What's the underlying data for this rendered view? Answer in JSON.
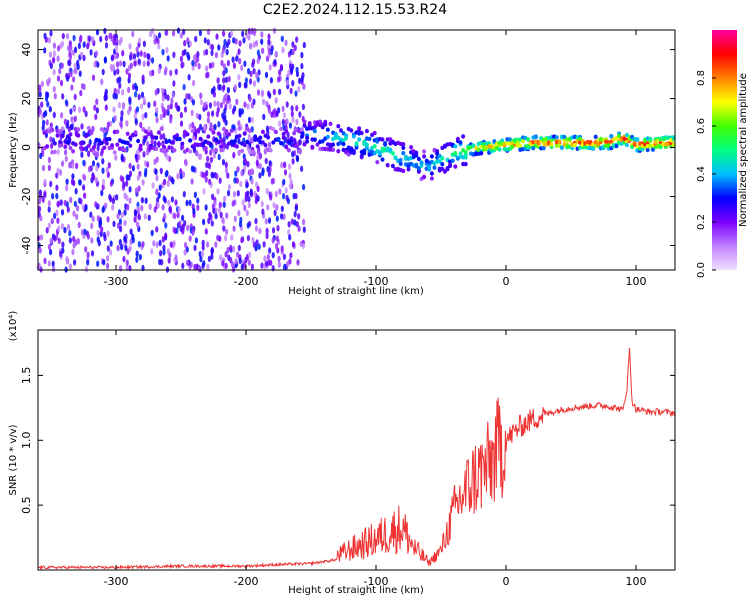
{
  "figure": {
    "title": "C2E2.2024.112.15.53.R24"
  },
  "chart_data": [
    {
      "type": "heatmap",
      "title": "C2E2.2024.112.15.53.R24",
      "xlabel": "Height of straight line (km)",
      "ylabel": "Frequency (Hz)",
      "xlim": [
        -360,
        130
      ],
      "ylim": [
        -50,
        48
      ],
      "x_ticks": [
        -300,
        -200,
        -100,
        0,
        100
      ],
      "y_ticks": [
        -40,
        -20,
        0,
        20,
        40
      ],
      "colorbar": {
        "label": "Normalized spectral amplitude",
        "range": [
          0.0,
          1.0
        ],
        "ticks": [
          0.0,
          0.2,
          0.4,
          0.6,
          0.8
        ],
        "colors": [
          "#f0e0ff",
          "#c080ff",
          "#7a00ff",
          "#0000ff",
          "#00c0ff",
          "#00ff80",
          "#40ff00",
          "#ffff00",
          "#ff8000",
          "#ff0000",
          "#ff00a0"
        ]
      },
      "ridge": {
        "x": [
          -160,
          -140,
          -120,
          -100,
          -80,
          -60,
          -40,
          -20,
          0,
          20,
          40,
          60,
          80,
          90,
          100,
          120
        ],
        "y": [
          6,
          5,
          3,
          0,
          -4,
          -8,
          -2,
          0,
          1,
          2,
          2,
          2,
          2,
          4,
          1,
          2
        ],
        "amplitude": [
          0.35,
          0.4,
          0.45,
          0.5,
          0.45,
          0.4,
          0.5,
          0.75,
          0.8,
          0.85,
          0.9,
          0.9,
          0.9,
          0.9,
          0.9,
          0.9
        ]
      },
      "noise_region": {
        "x_range": [
          -360,
          -155
        ],
        "frequency_range": [
          -50,
          48
        ],
        "amplitude": 0.25
      }
    },
    {
      "type": "line",
      "xlabel": "Height of straight line (km)",
      "ylabel": "SNR (10 * v/v)",
      "y_scale_label": "(x10⁴)",
      "xlim": [
        -360,
        130
      ],
      "ylim": [
        0,
        1.85
      ],
      "x_ticks": [
        -300,
        -200,
        -100,
        0,
        100
      ],
      "y_ticks": [
        0.5,
        1.0,
        1.5
      ],
      "color": "#ee3333",
      "series": [
        {
          "x": [
            -360,
            -300,
            -250,
            -200,
            -180,
            -150,
            -130,
            -120,
            -110,
            -100,
            -90,
            -80,
            -70,
            -60,
            -50,
            -45,
            -40,
            -35,
            -30,
            -25,
            -20,
            -15,
            -10,
            -5,
            0,
            5,
            10,
            20,
            30,
            40,
            50,
            60,
            70,
            80,
            85,
            90,
            93,
            95,
            97,
            100,
            110,
            120,
            130
          ],
          "y": [
            0.02,
            0.02,
            0.03,
            0.03,
            0.04,
            0.05,
            0.08,
            0.12,
            0.15,
            0.18,
            0.22,
            0.25,
            0.12,
            0.05,
            0.15,
            0.3,
            0.45,
            0.55,
            0.62,
            0.7,
            0.75,
            0.78,
            0.85,
            0.95,
            1.0,
            1.05,
            1.1,
            1.16,
            1.2,
            1.23,
            1.25,
            1.26,
            1.27,
            1.26,
            1.25,
            1.23,
            1.4,
            1.7,
            1.3,
            1.24,
            1.22,
            1.22,
            1.21
          ]
        }
      ]
    }
  ]
}
